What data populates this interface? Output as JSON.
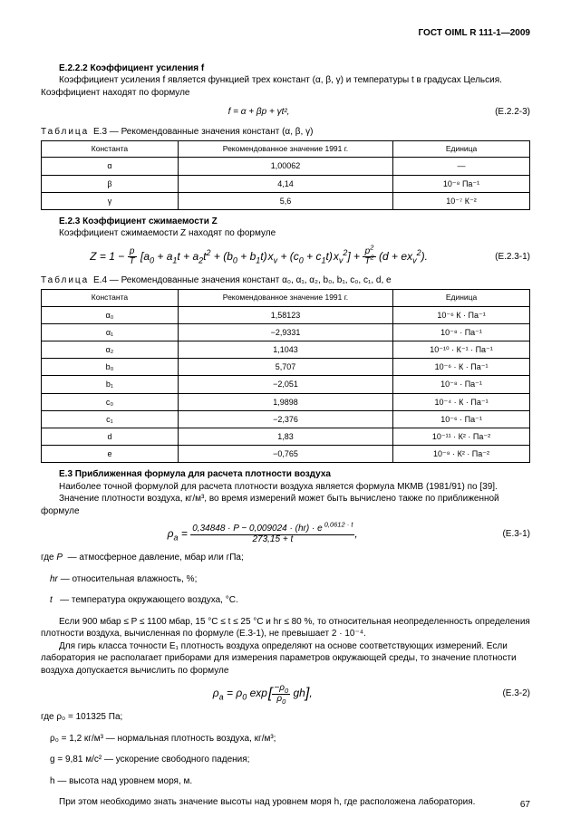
{
  "doc_header": "ГОСТ OIML R 111-1—2009",
  "s1": {
    "title": "Е.2.2.2 Коэффициент усиления f",
    "p1": "Коэффициент усиления f является функцией трех констант (α, β, γ)  и температуры t в градусах Цельсия. Коэффициент находят по формуле",
    "formula": "f = α + βp + γt²,",
    "formula_num": "(Е.2.2-3)"
  },
  "t3": {
    "caption_label": "Таблица",
    "caption_rest": "Е.3 — Рекомендованные значения констант (α, β, γ)",
    "cols": [
      "Константа",
      "Рекомендованное значение 1991 г.",
      "Единица"
    ],
    "rows": [
      [
        "α",
        "1,00062",
        "—"
      ],
      [
        "β",
        "4,14",
        "10⁻⁸ Па⁻¹"
      ],
      [
        "γ",
        "5,6",
        "10⁻⁷ К⁻²"
      ]
    ]
  },
  "s2": {
    "title": "Е.2.3 Коэффициент сжимаемости Z",
    "p1": "Коэффициент сжимаемости Z находят по формуле",
    "formula_num": "(Е.2.3-1)"
  },
  "t4": {
    "caption_label": "Таблица",
    "caption_rest": "Е.4 — Рекомендованные значения констант α₀, α₁, α₂, b₀, b₁, c₀, c₁, d, e",
    "cols": [
      "Константа",
      "Рекомендованное значение 1991 г.",
      "Единица"
    ],
    "rows": [
      [
        "α₀",
        "1,58123",
        "10⁻⁶ К · Па⁻¹"
      ],
      [
        "α₁",
        "−2,9331",
        "10⁻⁸ · Па⁻¹"
      ],
      [
        "α₂",
        "1,1043",
        "10⁻¹⁰ · К⁻¹ · Па⁻¹"
      ],
      [
        "b₀",
        "5,707",
        "10⁻⁶ · К · Па⁻¹"
      ],
      [
        "b₁",
        "−2,051",
        "10⁻⁸ · Па⁻¹"
      ],
      [
        "c₀",
        "1,9898",
        "10⁻⁴ · К · Па⁻¹"
      ],
      [
        "c₁",
        "−2,376",
        "10⁻⁶ · Па⁻¹"
      ],
      [
        "d",
        "1,83",
        "10⁻¹¹ · К² · Па⁻²"
      ],
      [
        "e",
        "−0,765",
        "10⁻⁸ · К² · Па⁻²"
      ]
    ]
  },
  "s3": {
    "title": "Е.3 Приближенная формула для расчета плотности воздуха",
    "p1": "Наиболее точной формулой для расчета плотности воздуха является формула МКМВ (1981/91) по [39].",
    "p2": "Значение плотности воздуха, кг/м³, во время измерений может быть вычислено также по приближенной формуле",
    "formula_num1": "(Е.3-1)",
    "where_label": "где",
    "where1_sym": "P",
    "where1_txt": "— атмосферное давление, мбар или гПа;",
    "where2_sym": "hr",
    "where2_txt": "— относительная влажность, %;",
    "where3_sym": "t",
    "where3_txt": "— температура окружающего воздуха, °C.",
    "p3": "Если 900 мбар ≤ P ≤ 1100 мбар, 15 °C ≤ t ≤ 25 °C  и  hr ≤ 80 %, то относительная неопределенность определения плотности воздуха, вычисленная по формуле (Е.3-1), не превышает 2 · 10⁻⁴.",
    "p4": "Для гирь класса точности Е₁ плотность воздуха определяют на основе соответствующих измерений. Если лаборатория не располагает приборами для измерения параметров окружающей среды, то значение плотности воздуха допускается вычислить по формуле",
    "formula_num2": "(Е.3-2)",
    "c1": "где ρ₀ = 101325 Па;",
    "c2": "ρ₀ = 1,2  кг/м³ — нормальная плотность воздуха, кг/м³;",
    "c3": "g  = 9,81 м/с² — ускорение свободного падения;",
    "c4": "h  — высота над уровнем моря, м.",
    "p5": "При этом необходимо знать значение высоты над уровнем моря h, где расположена лаборатория."
  },
  "page_number": "67",
  "style": {
    "table_col_widths": [
      "28%",
      "44%",
      "28%"
    ]
  }
}
